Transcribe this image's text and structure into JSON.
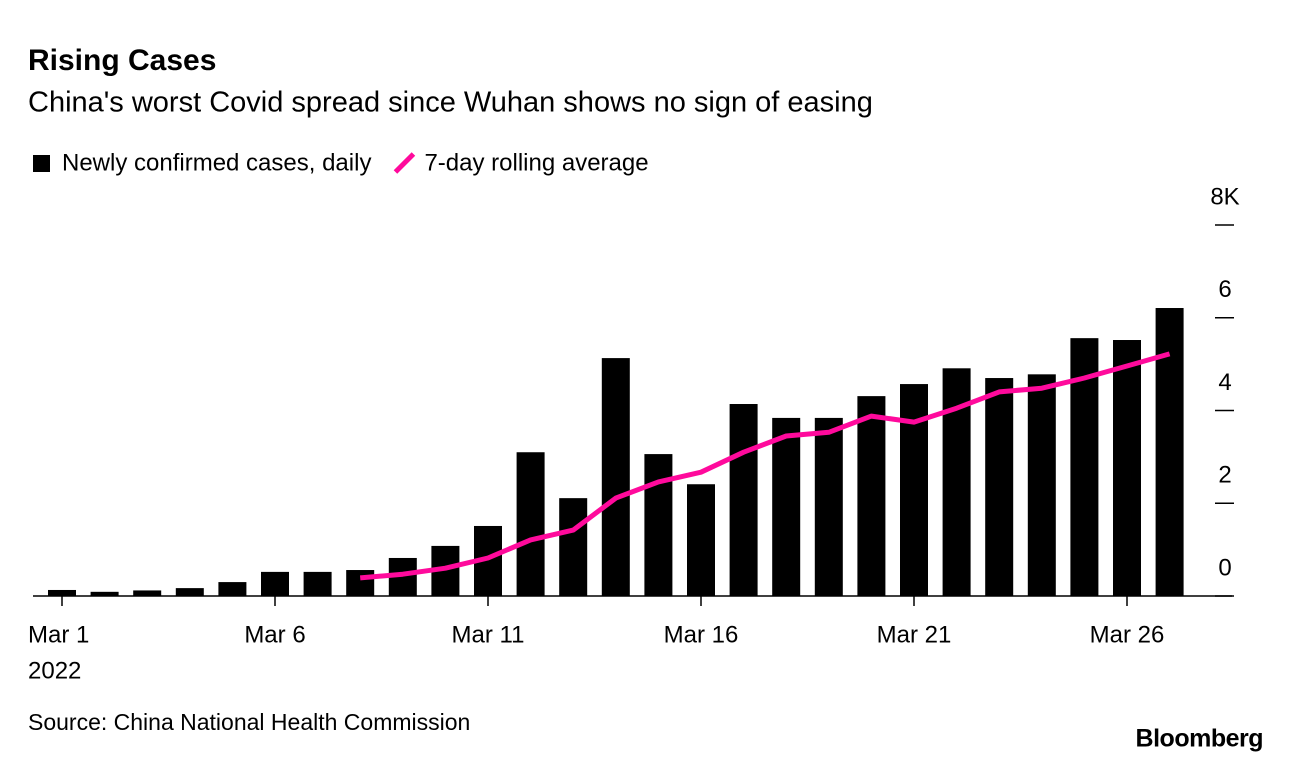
{
  "chart_data": {
    "type": "bar",
    "title": "Rising Cases",
    "subtitle": "China's worst Covid spread since Wuhan shows no sign of easing",
    "categories": [
      "Mar 1",
      null,
      null,
      null,
      null,
      "Mar 6",
      null,
      null,
      null,
      null,
      "Mar 11",
      null,
      null,
      null,
      null,
      "Mar 16",
      null,
      null,
      null,
      null,
      "Mar 21",
      null,
      null,
      null,
      null,
      "Mar 26",
      null
    ],
    "x_year_label": "2022",
    "series": [
      {
        "name": "Newly confirmed cases, daily",
        "type": "bar",
        "color": "#000000",
        "values": [
          0.13,
          0.09,
          0.12,
          0.17,
          0.3,
          0.52,
          0.52,
          0.56,
          0.82,
          1.08,
          1.51,
          3.1,
          2.11,
          5.13,
          3.06,
          2.41,
          4.14,
          3.84,
          3.84,
          4.31,
          4.57,
          4.91,
          4.7,
          4.78,
          5.56,
          5.52,
          6.21
        ]
      },
      {
        "name": "7-day rolling average",
        "type": "line",
        "color": "#ff0a9c",
        "values": [
          null,
          null,
          null,
          null,
          null,
          null,
          null,
          0.39,
          0.47,
          0.6,
          0.82,
          1.21,
          1.42,
          2.11,
          2.46,
          2.67,
          3.1,
          3.45,
          3.53,
          3.88,
          3.75,
          4.05,
          4.4,
          4.48,
          4.7,
          4.96,
          5.22
        ]
      }
    ],
    "ylim": [
      0,
      8
    ],
    "yticks": [
      0,
      2,
      4,
      6,
      {
        "value": 8,
        "label": "8K"
      }
    ],
    "source": "Source: China National Health Commission",
    "brand": "Bloomberg"
  }
}
